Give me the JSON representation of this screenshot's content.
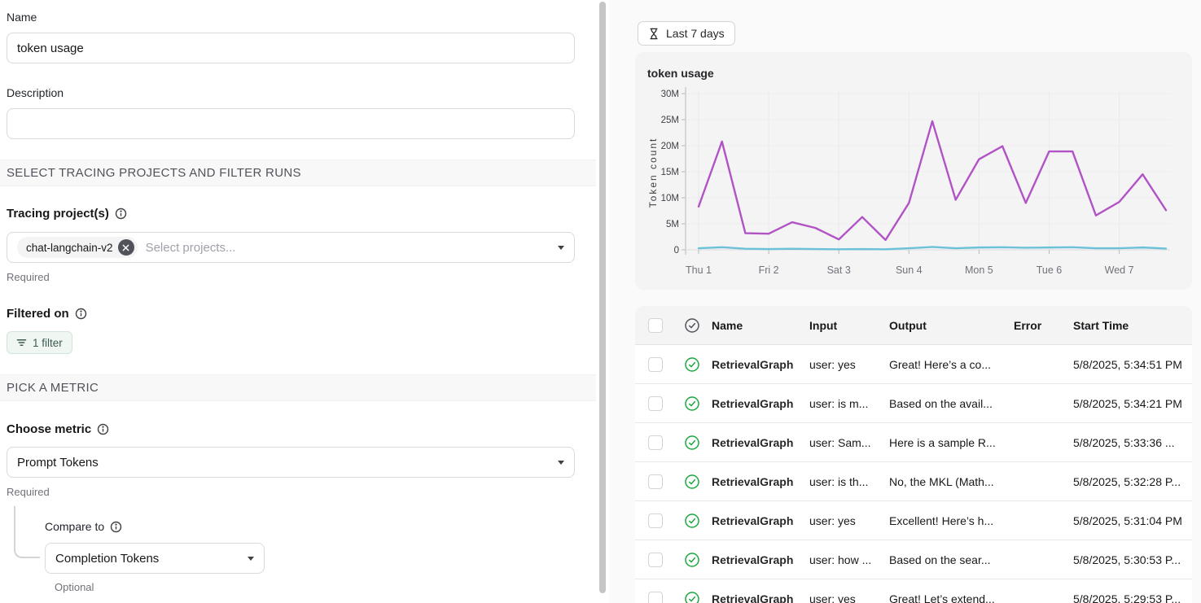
{
  "left_panel": {
    "name_label": "Name",
    "name_value": "token usage",
    "description_label": "Description",
    "description_value": "",
    "section_projects": "SELECT TRACING PROJECTS AND FILTER RUNS",
    "tracing_label": "Tracing project(s)",
    "project_chip": "chat-langchain-v2",
    "project_placeholder": "Select projects...",
    "tracing_required": "Required",
    "filtered_on_label": "Filtered on",
    "filter_button_label": "1 filter",
    "section_metric": "PICK A METRIC",
    "choose_metric_label": "Choose metric",
    "metric_value": "Prompt Tokens",
    "metric_required": "Required",
    "compare_to_label": "Compare to",
    "compare_value": "Completion Tokens",
    "compare_optional": "Optional"
  },
  "toolbar": {
    "time_range_label": "Last 7 days"
  },
  "icons": {
    "time_range": "hourglass-icon",
    "label_hint": "info-icon",
    "filter": "filter-lines-icon",
    "chip_remove": "x-circle-icon",
    "row_status": "check-circle-icon",
    "dropdown": "chevron-down-icon"
  },
  "colors": {
    "prompt_line": "#b153c4",
    "completion_line": "#6bc2d8",
    "success_green": "#1ba73e",
    "card_bg": "#f4f4f5",
    "filter_chip_bg": "#f0f7f3"
  },
  "chart_data": {
    "type": "line",
    "title": "token usage",
    "xlabel": "",
    "ylabel": "Token count",
    "ylim_millions": [
      0,
      30
    ],
    "y_tick_labels": [
      "30M",
      "25M",
      "20M",
      "15M",
      "10M",
      "5M",
      "0"
    ],
    "x_tick_labels": [
      "Thu 1",
      "Fri 2",
      "Sat 3",
      "Sun 4",
      "Mon 5",
      "Tue 6",
      "Wed 7"
    ],
    "points_per_day": 3,
    "grid": true,
    "legend": "none",
    "series": [
      {
        "name": "Prompt Tokens",
        "color": "#b153c4",
        "values_millions": [
          8.3,
          20.8,
          3.2,
          3.1,
          5.3,
          4.2,
          2.0,
          6.3,
          1.9,
          9.0,
          24.7,
          9.6,
          17.4,
          19.9,
          9.0,
          18.9,
          18.9,
          6.6,
          9.2,
          14.5,
          7.6
        ]
      },
      {
        "name": "Completion Tokens",
        "color": "#6bc2d8",
        "values_millions": [
          0.3,
          0.5,
          0.2,
          0.15,
          0.2,
          0.15,
          0.1,
          0.15,
          0.1,
          0.3,
          0.55,
          0.3,
          0.45,
          0.5,
          0.4,
          0.45,
          0.5,
          0.3,
          0.3,
          0.45,
          0.25
        ]
      }
    ]
  },
  "table": {
    "headers": [
      "Name",
      "Input",
      "Output",
      "Error",
      "Start Time"
    ],
    "rows": [
      {
        "name": "RetrievalGraph",
        "input": "user: yes",
        "output": "Great! Here’s a co...",
        "error": "",
        "start_time": "5/8/2025, 5:34:51 PM"
      },
      {
        "name": "RetrievalGraph",
        "input": "user: is m...",
        "output": "Based on the avail...",
        "error": "",
        "start_time": "5/8/2025, 5:34:21 PM"
      },
      {
        "name": "RetrievalGraph",
        "input": "user: Sam...",
        "output": "Here is a sample R...",
        "error": "",
        "start_time": "5/8/2025, 5:33:36 ..."
      },
      {
        "name": "RetrievalGraph",
        "input": "user: is th...",
        "output": "No, the MKL (Math...",
        "error": "",
        "start_time": "5/8/2025, 5:32:28 P..."
      },
      {
        "name": "RetrievalGraph",
        "input": "user: yes",
        "output": "Excellent! Here’s h...",
        "error": "",
        "start_time": "5/8/2025, 5:31:04 PM"
      },
      {
        "name": "RetrievalGraph",
        "input": "user: how ...",
        "output": "Based on the sear...",
        "error": "",
        "start_time": "5/8/2025, 5:30:53 P..."
      },
      {
        "name": "RetrievalGraph",
        "input": "user: yes",
        "output": "Great! Let’s extend...",
        "error": "",
        "start_time": "5/8/2025, 5:29:53 P..."
      }
    ]
  }
}
